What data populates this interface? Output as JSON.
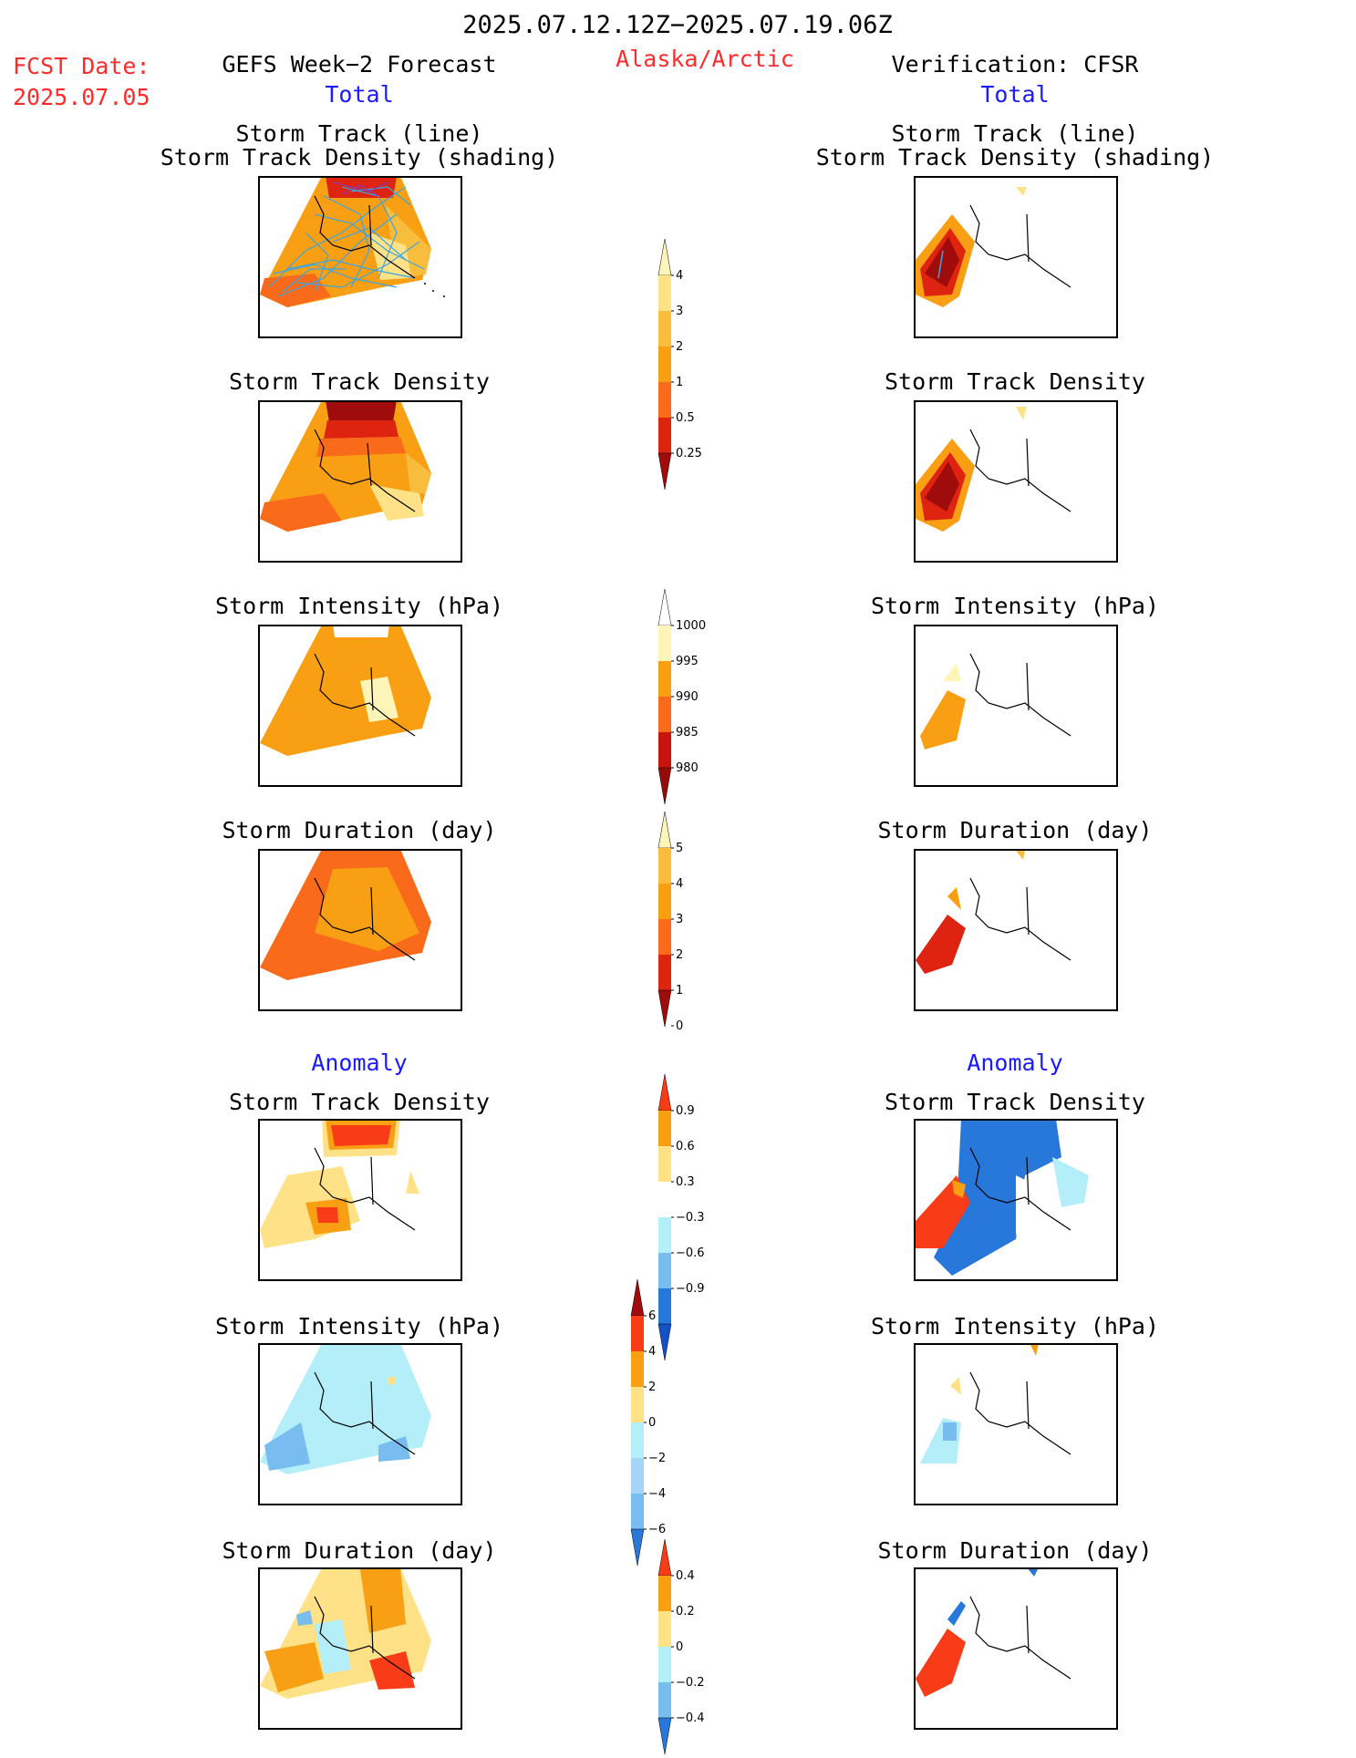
{
  "header": {
    "period": "2025.07.12.12Z−2025.07.19.06Z",
    "fcst_label": "FCST Date:",
    "fcst_date": "2025.07.05",
    "left_title": "GEFS Week−2 Forecast",
    "region": "Alaska/Arctic",
    "right_title": "Verification: CFSR",
    "left_sub": "Total",
    "right_sub": "Total"
  },
  "sections": {
    "anomaly_left": "Anomaly",
    "anomaly_right": "Anomaly"
  },
  "panel_titles": {
    "track_line": "Storm Track (line)",
    "track_shading": "Storm Track Density (shading)",
    "density": "Storm Track Density",
    "intensity": "Storm Intensity (hPa)",
    "duration": "Storm Duration (day)"
  },
  "colors": {
    "header_red": "#ff2a2a",
    "header_blue": "#1a1aff",
    "track_line": "#3aa6e0"
  },
  "chart_data": [
    {
      "type": "heatmap",
      "name": "Storm Track Density total colorbar",
      "levels": [
        0.25,
        0.5,
        1,
        2,
        3,
        4
      ],
      "tick_labels": [
        "0.25",
        "0.5",
        "1",
        "2",
        "3",
        "4"
      ],
      "colors": [
        "#fff5b8",
        "#ffe187",
        "#f8bd3c",
        "#f99f14",
        "#f96a1a",
        "#de2410",
        "#a00c0c"
      ]
    },
    {
      "type": "heatmap",
      "name": "Storm Intensity total colorbar (hPa)",
      "levels": [
        980,
        985,
        990,
        995,
        1000
      ],
      "tick_labels": [
        "1000",
        "995",
        "990",
        "985",
        "980"
      ],
      "colors": [
        "#ffffff",
        "#fff5b8",
        "#f99f14",
        "#f96a1a",
        "#c8140e",
        "#960a0a"
      ]
    },
    {
      "type": "heatmap",
      "name": "Storm Duration total colorbar (day)",
      "levels": [
        0,
        1,
        2,
        3,
        4,
        5
      ],
      "tick_labels": [
        "5",
        "4",
        "3",
        "2",
        "1",
        "0"
      ],
      "colors": [
        "#fff5b8",
        "#f8bd3c",
        "#f99f14",
        "#f96a1a",
        "#de2410",
        "#a00c0c"
      ]
    },
    {
      "type": "heatmap",
      "name": "Storm Track Density anomaly colorbar",
      "levels": [
        -0.9,
        -0.6,
        -0.3,
        0.3,
        0.6,
        0.9
      ],
      "tick_labels": [
        "0.9",
        "0.6",
        "0.3",
        "−0.3",
        "−0.6",
        "−0.9"
      ],
      "colors": [
        "#f83c18",
        "#f99f14",
        "#ffe187",
        "#ffffff",
        "#b4eef8",
        "#78bcf0",
        "#2878dc",
        "#1450c8"
      ]
    },
    {
      "type": "heatmap",
      "name": "Storm Intensity anomaly colorbar (hPa)",
      "levels": [
        -6,
        -4,
        -2,
        0,
        2,
        4,
        6
      ],
      "tick_labels": [
        "6",
        "4",
        "2",
        "0",
        "−2",
        "−4",
        "−6"
      ],
      "colors": [
        "#a00c0c",
        "#f83c18",
        "#f99f14",
        "#ffe187",
        "#b4eef8",
        "#a6d4f8",
        "#78bcf0",
        "#2878dc"
      ]
    },
    {
      "type": "heatmap",
      "name": "Storm Duration anomaly colorbar (day)",
      "levels": [
        -0.4,
        -0.2,
        0,
        0.2,
        0.4
      ],
      "tick_labels": [
        "0.4",
        "0.2",
        "0",
        "−0.2",
        "−0.4"
      ],
      "colors": [
        "#f83c18",
        "#f99f14",
        "#ffe187",
        "#b4eef8",
        "#78bcf0",
        "#2878dc"
      ]
    }
  ]
}
